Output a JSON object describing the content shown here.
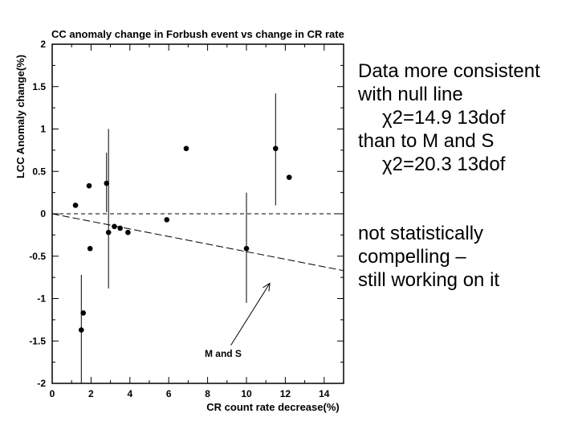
{
  "chart_data": {
    "type": "scatter",
    "title": "CC anomaly change in Forbush event vs change in CR rate",
    "xlabel": "CR count rate decrease(%)",
    "ylabel": "LCC Anomaly change(%)",
    "xlim": [
      0,
      15
    ],
    "ylim": [
      -2,
      2
    ],
    "x_ticks": [
      0,
      2,
      4,
      6,
      8,
      10,
      12,
      14
    ],
    "y_ticks": [
      -2,
      -1.5,
      -1,
      -0.5,
      0,
      0.5,
      1,
      1.5,
      2
    ],
    "x_tick_labels": [
      "0",
      "2",
      "4",
      "6",
      "8",
      "10",
      "12",
      "14"
    ],
    "y_tick_labels": [
      "-2",
      "-1.5",
      "-1",
      "-0.5",
      "0",
      "0.5",
      "1",
      "1.5",
      "2"
    ],
    "grid": false,
    "points": [
      {
        "x": 1.2,
        "y": 0.1
      },
      {
        "x": 1.5,
        "y": -1.37,
        "err_low": -2.0,
        "err_high": -0.72
      },
      {
        "x": 1.6,
        "y": -1.17
      },
      {
        "x": 1.9,
        "y": 0.33
      },
      {
        "x": 1.95,
        "y": -0.41
      },
      {
        "x": 2.8,
        "y": 0.36,
        "err_low": 0.02,
        "err_high": 0.72
      },
      {
        "x": 2.9,
        "y": -0.22,
        "err_low": -0.88,
        "err_high": 1.0
      },
      {
        "x": 3.2,
        "y": -0.15
      },
      {
        "x": 3.5,
        "y": -0.17
      },
      {
        "x": 3.9,
        "y": -0.22
      },
      {
        "x": 5.9,
        "y": -0.07
      },
      {
        "x": 6.9,
        "y": 0.77
      },
      {
        "x": 10.0,
        "y": -0.41,
        "err_low": -1.05,
        "err_high": 0.25
      },
      {
        "x": 11.5,
        "y": 0.77,
        "err_low": 0.1,
        "err_high": 1.42
      },
      {
        "x": 12.2,
        "y": 0.43
      }
    ],
    "lines": [
      {
        "kind": "null-line",
        "style": "dashed",
        "x": [
          0,
          15
        ],
        "y": [
          0,
          0
        ]
      },
      {
        "kind": "M and S",
        "style": "dashed",
        "x": [
          0,
          15
        ],
        "y": [
          0,
          -0.67
        ]
      }
    ],
    "annotation": {
      "text": "M and S",
      "text_at": {
        "x": 8.8,
        "y": -1.65
      },
      "arrow_from": {
        "x": 9.2,
        "y": -1.55
      },
      "arrow_to": {
        "x": 11.2,
        "y": -0.82
      }
    }
  },
  "notes": {
    "line1": "Data more consistent",
    "line2": "with null line",
    "chi1": "χ2=14.9 13dof",
    "line3": "than to M and S",
    "chi2": "χ2=20.3 13dof",
    "line4": "not statistically",
    "line5": "compelling –",
    "line6": "still working on it"
  }
}
